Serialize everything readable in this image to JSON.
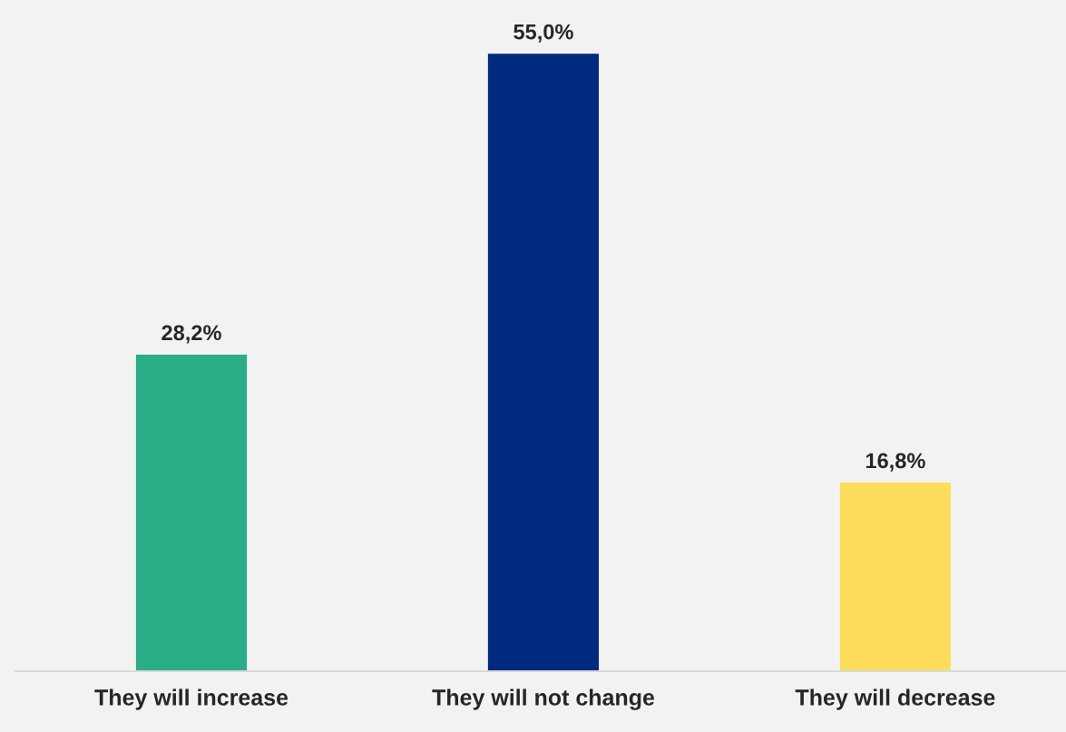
{
  "chart_data": {
    "type": "bar",
    "categories": [
      "They will increase",
      "They will not change",
      "They will decrease"
    ],
    "values": [
      28.2,
      55.0,
      16.8
    ],
    "colors": [
      "#2bae87",
      "#002a80",
      "#ffdd5c"
    ],
    "value_labels": [
      "28,2%",
      "55,0%",
      "16,8%"
    ],
    "grid": false,
    "legend": false
  }
}
